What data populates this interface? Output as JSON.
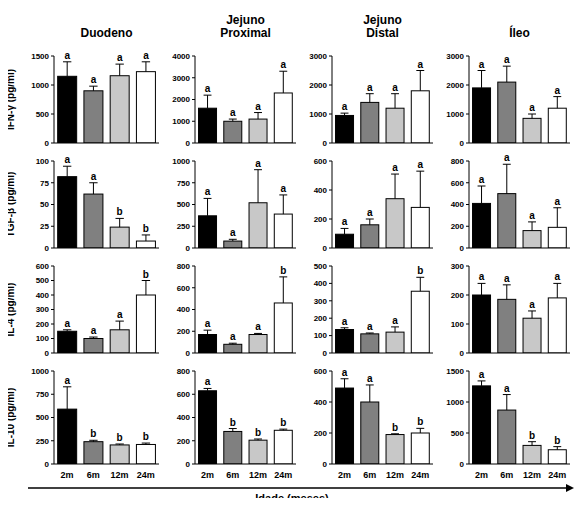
{
  "xlabel": "Idade (meses)",
  "chart_data": [
    {
      "type": "bar",
      "title": "Duodeno",
      "ylabel": "IFN-γ (pg/ml)",
      "categories": [
        "2m",
        "6m",
        "12m",
        "24m"
      ],
      "values": [
        1150,
        900,
        1160,
        1230
      ],
      "errors": [
        250,
        80,
        200,
        170
      ],
      "annotations": [
        "a",
        "a",
        "a",
        "a"
      ],
      "colors": [
        "#000000",
        "#808080",
        "#c8c8c8",
        "#ffffff"
      ],
      "ylim": [
        0,
        1500
      ],
      "yticks": [
        0,
        500,
        1000,
        1500
      ],
      "tick_labels": "y"
    },
    {
      "type": "bar",
      "title": "Jejuno Proximal",
      "categories": [
        "2m",
        "6m",
        "12m",
        "24m"
      ],
      "values": [
        1600,
        1000,
        1100,
        2300
      ],
      "errors": [
        600,
        100,
        300,
        1000
      ],
      "annotations": [
        "a",
        "a",
        "a",
        "a"
      ],
      "colors": [
        "#000000",
        "#808080",
        "#c8c8c8",
        "#ffffff"
      ],
      "ylim": [
        0,
        4000
      ],
      "yticks": [
        0,
        1000,
        2000,
        3000,
        4000
      ],
      "tick_labels": "y"
    },
    {
      "type": "bar",
      "title": "Jejuno Distal",
      "categories": [
        "2m",
        "6m",
        "12m",
        "24m"
      ],
      "values": [
        950,
        1400,
        1200,
        1800
      ],
      "errors": [
        80,
        300,
        500,
        700
      ],
      "annotations": [
        "a",
        "a",
        "a",
        "a"
      ],
      "colors": [
        "#000000",
        "#808080",
        "#c8c8c8",
        "#ffffff"
      ],
      "ylim": [
        0,
        3000
      ],
      "yticks": [
        0,
        1000,
        2000,
        3000
      ],
      "tick_labels": "y"
    },
    {
      "type": "bar",
      "title": "Íleo",
      "categories": [
        "2m",
        "6m",
        "12m",
        "24m"
      ],
      "values": [
        1900,
        2100,
        850,
        1200
      ],
      "errors": [
        600,
        550,
        150,
        400
      ],
      "annotations": [
        "a",
        "a",
        "a",
        "a"
      ],
      "colors": [
        "#000000",
        "#808080",
        "#c8c8c8",
        "#ffffff"
      ],
      "ylim": [
        0,
        3000
      ],
      "yticks": [
        0,
        1000,
        2000,
        3000
      ],
      "tick_labels": "y"
    },
    {
      "type": "bar",
      "ylabel": "TGF-β (pg/ml)",
      "categories": [
        "2m",
        "6m",
        "12m",
        "24m"
      ],
      "values": [
        82,
        62,
        24,
        8
      ],
      "errors": [
        12,
        13,
        10,
        7
      ],
      "annotations": [
        "a",
        "a",
        "b",
        "b"
      ],
      "colors": [
        "#000000",
        "#808080",
        "#c8c8c8",
        "#ffffff"
      ],
      "ylim": [
        0,
        100
      ],
      "yticks": [
        0,
        25,
        50,
        75,
        100
      ],
      "tick_labels": "y"
    },
    {
      "type": "bar",
      "categories": [
        "2m",
        "6m",
        "12m",
        "24m"
      ],
      "values": [
        370,
        80,
        520,
        390
      ],
      "errors": [
        200,
        20,
        380,
        220
      ],
      "annotations": [
        "a",
        "a",
        "a",
        "a"
      ],
      "colors": [
        "#000000",
        "#808080",
        "#c8c8c8",
        "#ffffff"
      ],
      "ylim": [
        0,
        1000
      ],
      "yticks": [
        0,
        250,
        500,
        750,
        1000
      ],
      "tick_labels": "y"
    },
    {
      "type": "bar",
      "categories": [
        "2m",
        "6m",
        "12m",
        "24m"
      ],
      "values": [
        95,
        160,
        340,
        280
      ],
      "errors": [
        40,
        40,
        170,
        250
      ],
      "annotations": [
        "a",
        "a",
        "a",
        "a"
      ],
      "colors": [
        "#000000",
        "#808080",
        "#c8c8c8",
        "#ffffff"
      ],
      "ylim": [
        0,
        600
      ],
      "yticks": [
        0,
        200,
        400,
        600
      ],
      "tick_labels": "y"
    },
    {
      "type": "bar",
      "categories": [
        "2m",
        "6m",
        "12m",
        "24m"
      ],
      "values": [
        410,
        500,
        160,
        190
      ],
      "errors": [
        160,
        270,
        80,
        180
      ],
      "annotations": [
        "a",
        "a",
        "a",
        "a"
      ],
      "colors": [
        "#000000",
        "#808080",
        "#c8c8c8",
        "#ffffff"
      ],
      "ylim": [
        0,
        800
      ],
      "yticks": [
        0,
        200,
        400,
        600,
        800
      ],
      "tick_labels": "y"
    },
    {
      "type": "bar",
      "ylabel": "IL-4 (pg/ml)",
      "categories": [
        "2m",
        "6m",
        "12m",
        "24m"
      ],
      "values": [
        150,
        100,
        160,
        400
      ],
      "errors": [
        10,
        10,
        60,
        100
      ],
      "annotations": [
        "a",
        "a",
        "a",
        "b"
      ],
      "colors": [
        "#000000",
        "#808080",
        "#c8c8c8",
        "#ffffff"
      ],
      "ylim": [
        0,
        600
      ],
      "yticks": [
        0,
        100,
        200,
        300,
        400,
        500,
        600
      ],
      "tick_labels": "y"
    },
    {
      "type": "bar",
      "categories": [
        "2m",
        "6m",
        "12m",
        "24m"
      ],
      "values": [
        170,
        80,
        170,
        460
      ],
      "errors": [
        40,
        10,
        10,
        240
      ],
      "annotations": [
        "a",
        "a",
        "a",
        "b"
      ],
      "colors": [
        "#000000",
        "#808080",
        "#c8c8c8",
        "#ffffff"
      ],
      "ylim": [
        0,
        800
      ],
      "yticks": [
        0,
        200,
        400,
        600,
        800
      ],
      "tick_labels": "y"
    },
    {
      "type": "bar",
      "categories": [
        "2m",
        "6m",
        "12m",
        "24m"
      ],
      "values": [
        135,
        110,
        120,
        355
      ],
      "errors": [
        10,
        5,
        30,
        80
      ],
      "annotations": [
        "a",
        "a",
        "a",
        "b"
      ],
      "colors": [
        "#000000",
        "#808080",
        "#c8c8c8",
        "#ffffff"
      ],
      "ylim": [
        0,
        500
      ],
      "yticks": [
        0,
        100,
        200,
        300,
        400,
        500
      ],
      "tick_labels": "y"
    },
    {
      "type": "bar",
      "categories": [
        "2m",
        "6m",
        "12m",
        "24m"
      ],
      "values": [
        200,
        185,
        120,
        190
      ],
      "errors": [
        40,
        50,
        25,
        50
      ],
      "annotations": [
        "a",
        "a",
        "a",
        "a"
      ],
      "colors": [
        "#000000",
        "#808080",
        "#c8c8c8",
        "#ffffff"
      ],
      "ylim": [
        0,
        300
      ],
      "yticks": [
        0,
        100,
        200,
        300
      ],
      "tick_labels": "y"
    },
    {
      "type": "bar",
      "ylabel": "IL-10 (pg/ml)",
      "categories": [
        "2m",
        "6m",
        "12m",
        "24m"
      ],
      "values": [
        590,
        240,
        205,
        210
      ],
      "errors": [
        240,
        15,
        10,
        15
      ],
      "annotations": [
        "a",
        "b",
        "b",
        "b"
      ],
      "colors": [
        "#000000",
        "#808080",
        "#c8c8c8",
        "#ffffff"
      ],
      "ylim": [
        0,
        1000
      ],
      "yticks": [
        0,
        250,
        500,
        750,
        1000
      ]
    },
    {
      "type": "bar",
      "categories": [
        "2m",
        "6m",
        "12m",
        "24m"
      ],
      "values": [
        630,
        280,
        205,
        290
      ],
      "errors": [
        20,
        25,
        10,
        10
      ],
      "annotations": [
        "a",
        "b",
        "b",
        "b"
      ],
      "colors": [
        "#000000",
        "#808080",
        "#c8c8c8",
        "#ffffff"
      ],
      "ylim": [
        0,
        800
      ],
      "yticks": [
        0,
        200,
        400,
        600,
        800
      ]
    },
    {
      "type": "bar",
      "categories": [
        "2m",
        "6m",
        "12m",
        "24m"
      ],
      "values": [
        490,
        400,
        190,
        200
      ],
      "errors": [
        60,
        110,
        5,
        30
      ],
      "annotations": [
        "a",
        "a",
        "b",
        "b"
      ],
      "colors": [
        "#000000",
        "#808080",
        "#c8c8c8",
        "#ffffff"
      ],
      "ylim": [
        0,
        600
      ],
      "yticks": [
        0,
        200,
        400,
        600
      ]
    },
    {
      "type": "bar",
      "categories": [
        "2m",
        "6m",
        "12m",
        "24m"
      ],
      "values": [
        1260,
        870,
        300,
        230
      ],
      "errors": [
        80,
        250,
        60,
        50
      ],
      "annotations": [
        "a",
        "a",
        "b",
        "b"
      ],
      "colors": [
        "#000000",
        "#808080",
        "#c8c8c8",
        "#ffffff"
      ],
      "ylim": [
        0,
        1500
      ],
      "yticks": [
        0,
        500,
        1000,
        1500
      ]
    }
  ]
}
